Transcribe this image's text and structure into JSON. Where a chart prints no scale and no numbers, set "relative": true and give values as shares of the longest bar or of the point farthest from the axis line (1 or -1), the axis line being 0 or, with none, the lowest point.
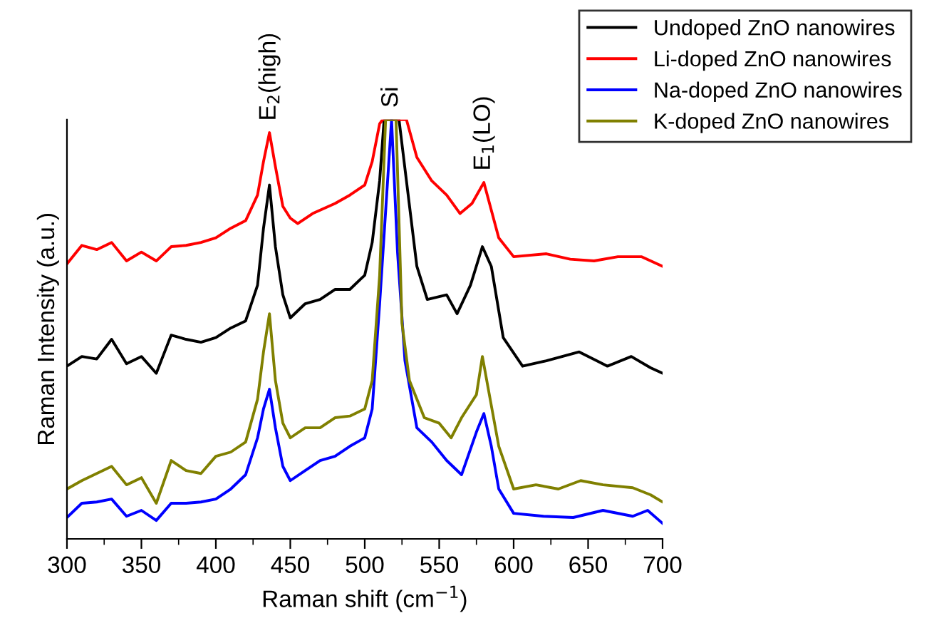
{
  "chart_data": {
    "type": "line",
    "relative": true,
    "xlabel": "Raman shift (cm$^{−1}$)",
    "ylabel": "Raman Intensity (a.u.)",
    "xlim": [
      300,
      700
    ],
    "xticks": [
      300,
      {
        "value": 325,
        "label": null
      },
      350,
      {
        "value": 375,
        "label": null
      },
      400,
      {
        "value": 425,
        "label": null
      },
      450,
      {
        "value": 475,
        "label": null
      },
      500,
      {
        "value": 525,
        "label": null
      },
      550,
      {
        "value": 575,
        "label": null
      },
      600,
      {
        "value": 625,
        "label": null
      },
      650,
      {
        "value": 675,
        "label": null
      },
      700
    ],
    "grid": false,
    "legend": "top right",
    "tick_labels": "x",
    "line_style": "solid",
    "marker": "none",
    "annotations": [
      {
        "text": "E$_{2}$(high)",
        "x": 436,
        "y": 0.969
      },
      {
        "text": "Si",
        "x": 518,
        "y": 1
      },
      {
        "text": "E$_{1}$(LO)",
        "x": 580,
        "y": 0.85
      }
    ],
    "series": [
      {
        "name": "Undoped ZnO nanowires",
        "color": "#000000",
        "x": [
          300,
          310,
          320,
          330,
          340,
          350,
          360,
          370,
          380,
          390,
          400,
          410,
          420,
          428,
          432,
          436,
          440,
          445,
          450,
          460,
          470,
          480,
          490,
          500,
          505,
          510,
          513,
          523,
          528,
          535,
          542,
          555,
          562,
          571,
          579,
          585,
          593,
          606,
          622,
          644,
          663,
          679,
          692,
          700
        ],
        "values": [
          0.412,
          0.435,
          0.429,
          0.476,
          0.418,
          0.435,
          0.395,
          0.486,
          0.476,
          0.469,
          0.48,
          0.503,
          0.52,
          0.605,
          0.741,
          0.844,
          0.697,
          0.582,
          0.527,
          0.561,
          0.571,
          0.595,
          0.595,
          0.629,
          0.707,
          0.854,
          1.0,
          1.0,
          0.854,
          0.65,
          0.571,
          0.582,
          0.537,
          0.605,
          0.697,
          0.65,
          0.48,
          0.412,
          0.425,
          0.446,
          0.412,
          0.435,
          0.408,
          0.395
        ]
      },
      {
        "name": "Li-doped ZnO nanowires",
        "color": "#ff0000",
        "x": [
          300,
          310,
          320,
          330,
          340,
          350,
          360,
          370,
          380,
          390,
          400,
          410,
          420,
          428,
          432,
          436,
          440,
          445,
          450,
          455,
          465,
          480,
          490,
          500,
          505,
          510,
          512,
          528,
          535,
          545,
          555,
          564,
          572,
          580,
          590,
          600,
          622,
          638,
          654,
          670,
          686,
          700
        ],
        "values": [
          0.656,
          0.7,
          0.69,
          0.707,
          0.663,
          0.684,
          0.663,
          0.697,
          0.7,
          0.707,
          0.718,
          0.741,
          0.759,
          0.82,
          0.9,
          0.969,
          0.888,
          0.793,
          0.765,
          0.752,
          0.776,
          0.8,
          0.82,
          0.844,
          0.9,
          0.99,
          1.0,
          1.0,
          0.91,
          0.854,
          0.82,
          0.776,
          0.8,
          0.85,
          0.718,
          0.673,
          0.68,
          0.667,
          0.663,
          0.673,
          0.673,
          0.65
        ]
      },
      {
        "name": "Na-doped ZnO nanowires",
        "color": "#0000ff",
        "x": [
          300,
          310,
          320,
          330,
          340,
          350,
          360,
          370,
          380,
          390,
          400,
          410,
          420,
          428,
          432,
          436,
          440,
          445,
          450,
          460,
          470,
          480,
          490,
          500,
          505,
          510,
          518,
          522,
          527,
          535,
          545,
          555,
          565,
          575,
          580,
          585,
          590,
          600,
          620,
          640,
          660,
          680,
          690,
          700
        ],
        "values": [
          0.051,
          0.085,
          0.088,
          0.095,
          0.054,
          0.068,
          0.044,
          0.085,
          0.085,
          0.088,
          0.095,
          0.119,
          0.153,
          0.241,
          0.31,
          0.357,
          0.265,
          0.173,
          0.139,
          0.163,
          0.187,
          0.197,
          0.221,
          0.241,
          0.31,
          0.561,
          1.0,
          0.684,
          0.425,
          0.265,
          0.231,
          0.187,
          0.153,
          0.255,
          0.299,
          0.221,
          0.119,
          0.061,
          0.054,
          0.051,
          0.068,
          0.054,
          0.068,
          0.037
        ]
      },
      {
        "name": "K-doped ZnO nanowires",
        "color": "#808000",
        "x": [
          300,
          310,
          320,
          330,
          340,
          350,
          360,
          370,
          380,
          390,
          400,
          410,
          420,
          428,
          432,
          436,
          440,
          445,
          450,
          460,
          470,
          480,
          490,
          500,
          505,
          510,
          514,
          521,
          525,
          530,
          540,
          550,
          558,
          565,
          575,
          579,
          583,
          590,
          600,
          615,
          630,
          645,
          660,
          680,
          692,
          700
        ],
        "values": [
          0.119,
          0.139,
          0.156,
          0.173,
          0.129,
          0.146,
          0.085,
          0.187,
          0.163,
          0.156,
          0.197,
          0.207,
          0.231,
          0.333,
          0.446,
          0.537,
          0.378,
          0.276,
          0.241,
          0.265,
          0.265,
          0.289,
          0.293,
          0.31,
          0.378,
          0.629,
          1.0,
          1.0,
          0.514,
          0.378,
          0.289,
          0.276,
          0.241,
          0.289,
          0.344,
          0.435,
          0.357,
          0.221,
          0.119,
          0.129,
          0.119,
          0.139,
          0.129,
          0.122,
          0.105,
          0.088
        ]
      }
    ]
  }
}
